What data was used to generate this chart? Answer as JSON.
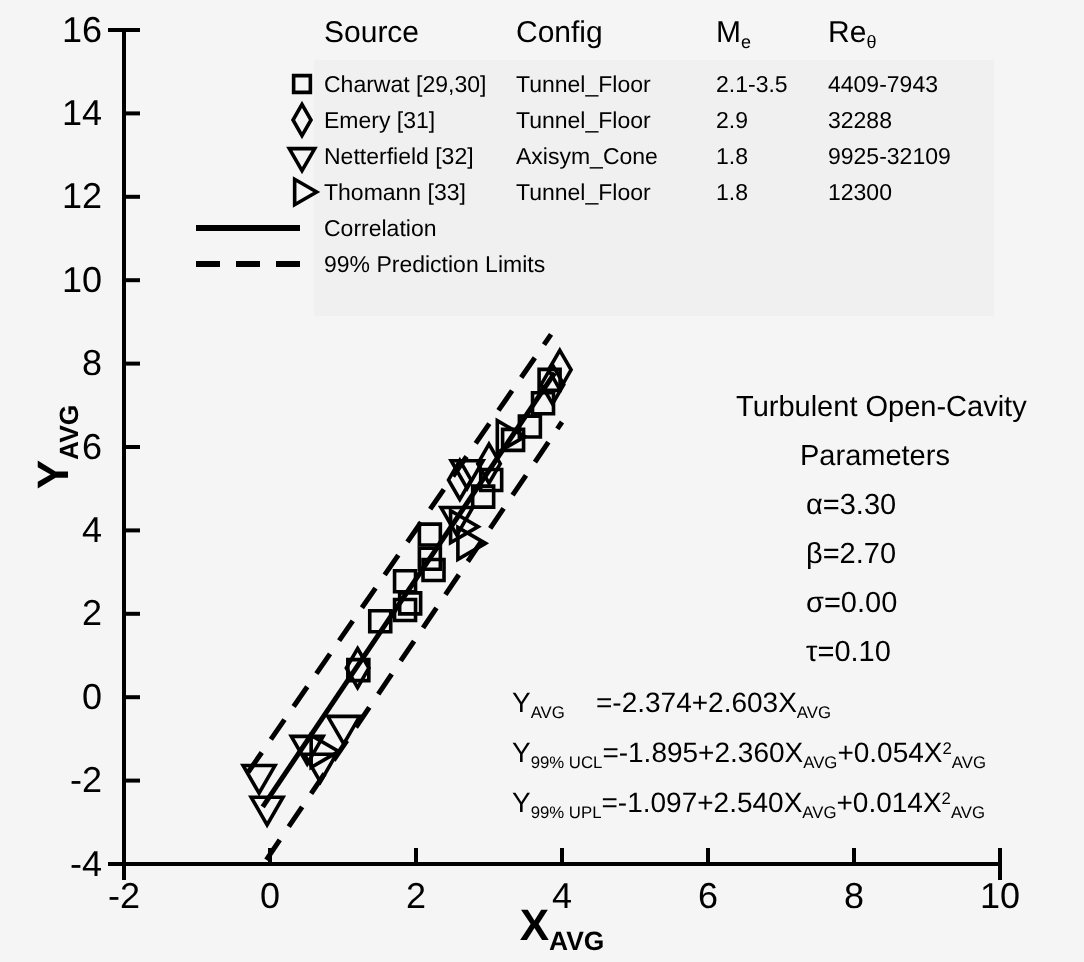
{
  "chart_data": {
    "type": "scatter",
    "xlabel": "X$_{AVG}$",
    "ylabel": "Y$_{AVG}$",
    "legend_title": "Source",
    "legend": "top",
    "xlim": [
      -2,
      10
    ],
    "xticks": [
      -2,
      0,
      2,
      4,
      6,
      8,
      10
    ],
    "ylim": [
      -4,
      16
    ],
    "yticks": [
      -4,
      -2,
      0,
      2,
      4,
      6,
      8,
      10,
      12,
      14,
      16
    ],
    "series": [
      {
        "name": "Charwat [29,30]",
        "type": "scatter",
        "marker": "square",
        "color": "#000000",
        "x": [
          1.21,
          1.51,
          1.85,
          1.92,
          1.85,
          2.24,
          2.19,
          2.19,
          2.92,
          3.03,
          3.33,
          3.56,
          3.74,
          3.83
        ],
        "values": [
          0.65,
          1.82,
          2.09,
          2.25,
          2.78,
          3.05,
          3.32,
          3.9,
          4.81,
          5.21,
          6.17,
          6.49,
          7.05,
          7.61
        ]
      },
      {
        "name": "Emery [31]",
        "type": "scatter",
        "marker": "diamond",
        "color": "#000000",
        "x": [
          1.2,
          2.6,
          3.0,
          3.87,
          3.97
        ],
        "values": [
          0.7,
          5.21,
          5.6,
          7.5,
          7.85
        ]
      },
      {
        "name": "Netterfield [32]",
        "type": "scatter",
        "marker": "triangle-down",
        "color": "#000000",
        "x": [
          -0.15,
          -0.04,
          0.51,
          0.69,
          1.01,
          2.56,
          2.7
        ],
        "values": [
          -1.86,
          -2.62,
          -1.16,
          -1.59,
          -0.68,
          4.33,
          5.45
        ]
      },
      {
        "name": "Thomann [33]",
        "type": "scatter",
        "marker": "triangle-right",
        "color": "#000000",
        "x": [
          2.7,
          2.6,
          3.24,
          0.69
        ],
        "values": [
          3.69,
          4.09,
          6.25,
          -1.3
        ]
      },
      {
        "name": "Correlation",
        "type": "line",
        "line_style": "solid",
        "color": "#000000",
        "x": [
          -0.1,
          3.9
        ],
        "values": [
          -2.63,
          7.78
        ]
      },
      {
        "name": "99% Prediction Limits",
        "type": "line",
        "line_style": "dashed",
        "color": "#000000",
        "x": [
          -0.3,
          3.85
        ],
        "values": [
          -1.8,
          8.7
        ]
      },
      {
        "type": "line",
        "line_style": "dashed",
        "color": "#000000",
        "x": [
          -0.05,
          4.0
        ],
        "values": [
          -3.9,
          6.6
        ]
      }
    ],
    "annotations": [
      "Config",
      "M$_{e}$",
      "Re$_{θ}$",
      "Tunnel_Floor",
      "2.1-3.5",
      "4409-7943",
      "Tunnel_Floor",
      "2.9",
      "32288",
      "Axisym_Cone",
      "1.8",
      "9925-32109",
      "Tunnel_Floor",
      "1.8",
      "12300",
      "Turbulent Open-Cavity",
      "Parameters",
      "α=3.30",
      "β=2.70",
      "σ=0.00",
      "τ=0.10",
      "Y$_{AVG}$    =-2.374+2.603X$_{AVG}$",
      "Y$_{99% UCL}$=-1.895+2.360X$_{AVG}$+0.054X$^{2}$$_{AVG}$",
      "Y$_{99% UPL}$=-1.097+2.540X$_{AVG}$+0.014X$^{2}$$_{AVG}$"
    ]
  }
}
